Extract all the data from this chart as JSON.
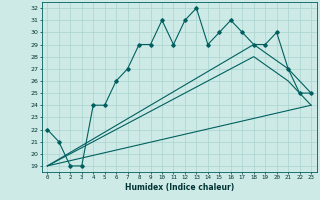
{
  "title": "",
  "xlabel": "Humidex (Indice chaleur)",
  "ylabel": "",
  "background_color": "#ceeae6",
  "grid_color": "#aad4d0",
  "line_color": "#006060",
  "xlim": [
    -0.5,
    23.5
  ],
  "ylim": [
    18.5,
    32.5
  ],
  "xticks": [
    0,
    1,
    2,
    3,
    4,
    5,
    6,
    7,
    8,
    9,
    10,
    11,
    12,
    13,
    14,
    15,
    16,
    17,
    18,
    19,
    20,
    21,
    22,
    23
  ],
  "yticks": [
    19,
    20,
    21,
    22,
    23,
    24,
    25,
    26,
    27,
    28,
    29,
    30,
    31,
    32
  ],
  "line1_x": [
    0,
    1,
    2,
    3,
    4,
    5,
    6,
    7,
    8,
    9,
    10,
    11,
    12,
    13,
    14,
    15,
    16,
    17,
    18,
    19,
    20,
    21,
    22,
    23
  ],
  "line1_y": [
    22,
    21,
    19,
    19,
    24,
    24,
    26,
    27,
    29,
    29,
    31,
    29,
    31,
    32,
    29,
    30,
    31,
    30,
    29,
    29,
    30,
    27,
    25,
    25
  ],
  "line2_x": [
    0,
    18,
    21,
    23
  ],
  "line2_y": [
    19,
    29,
    27,
    25
  ],
  "line3_x": [
    0,
    18,
    21,
    23
  ],
  "line3_y": [
    19,
    28,
    26,
    24
  ],
  "line4_x": [
    0,
    23
  ],
  "line4_y": [
    19,
    24
  ]
}
